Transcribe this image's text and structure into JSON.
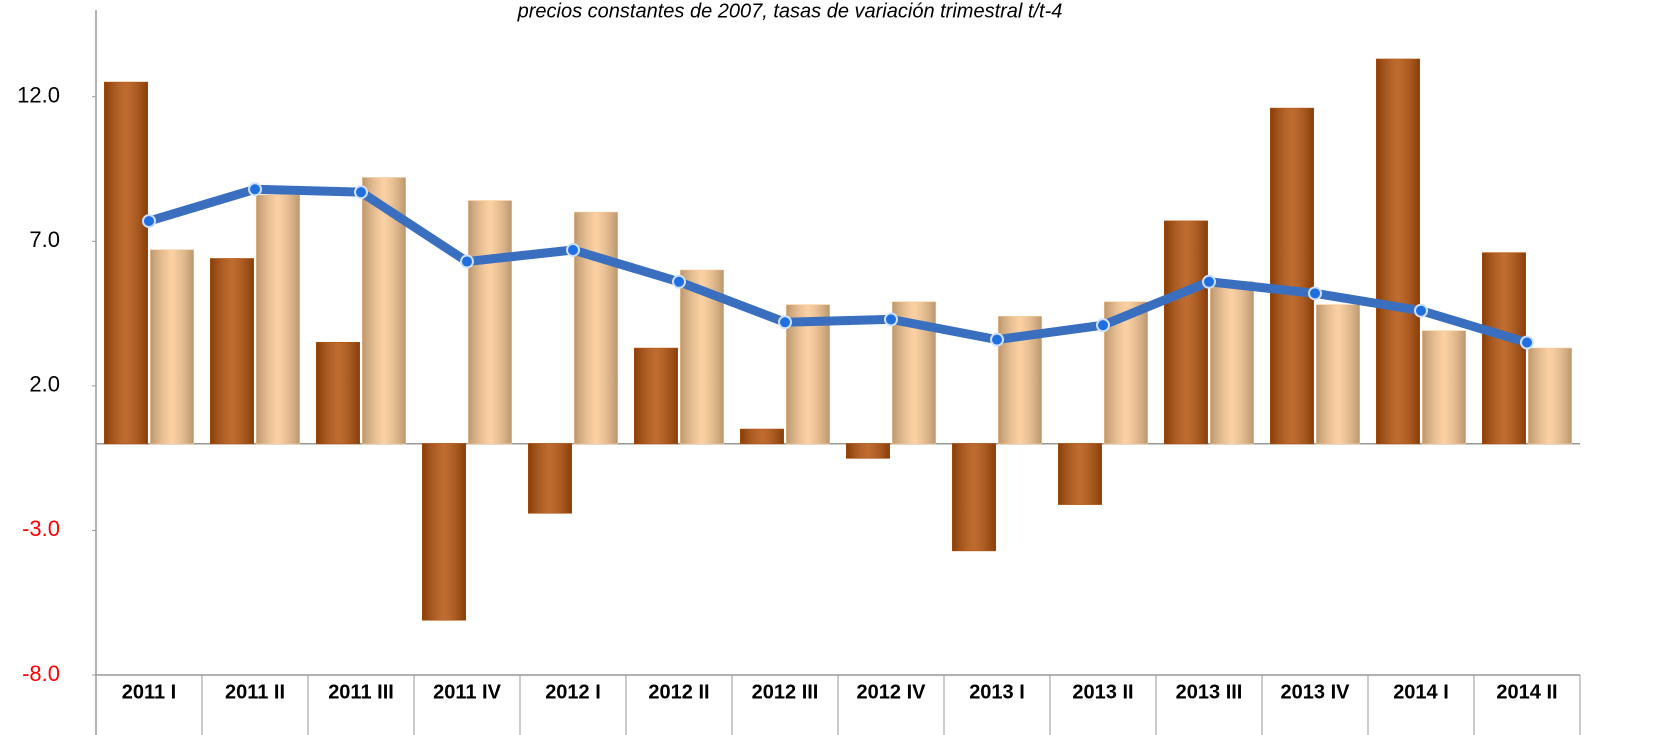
{
  "chart_data": {
    "type": "bar-line",
    "title": "precios constantes de 2007, tasas de variación trimestral t/t-4",
    "categories": [
      "2011 I",
      "2011 II",
      "2011 III",
      "2011 IV",
      "2012 I",
      "2012 II",
      "2012 III",
      "2012 IV",
      "2013 I",
      "2013 II",
      "2013 III",
      "2013 IV",
      "2014 I",
      "2014 II"
    ],
    "series": [
      {
        "type": "bar",
        "color": "#b5520b",
        "values": [
          12.5,
          6.4,
          3.5,
          -6.1,
          -2.4,
          3.3,
          0.5,
          -0.5,
          -3.7,
          -2.1,
          7.7,
          11.6,
          13.3,
          6.6
        ]
      },
      {
        "type": "bar",
        "color": "#fbc993",
        "values": [
          6.7,
          8.6,
          9.2,
          8.4,
          8.0,
          6.0,
          4.8,
          4.9,
          4.4,
          4.9,
          5.6,
          4.8,
          3.9,
          3.3
        ]
      },
      {
        "type": "line",
        "color": "#3a6fbf",
        "values": [
          7.7,
          8.8,
          8.7,
          6.3,
          6.7,
          5.6,
          4.2,
          4.3,
          3.6,
          4.1,
          5.6,
          5.2,
          4.6,
          3.5
        ]
      }
    ],
    "ylim": [
      -8,
      15
    ],
    "yticks": [
      {
        "value": -8,
        "label": "-8.0"
      },
      {
        "value": -3,
        "label": "-3.0"
      },
      {
        "value": 2,
        "label": "2.0"
      },
      {
        "value": 7,
        "label": "7.0"
      },
      {
        "value": 12,
        "label": "12.0"
      }
    ],
    "negative_tick_color": "#ff0000"
  }
}
